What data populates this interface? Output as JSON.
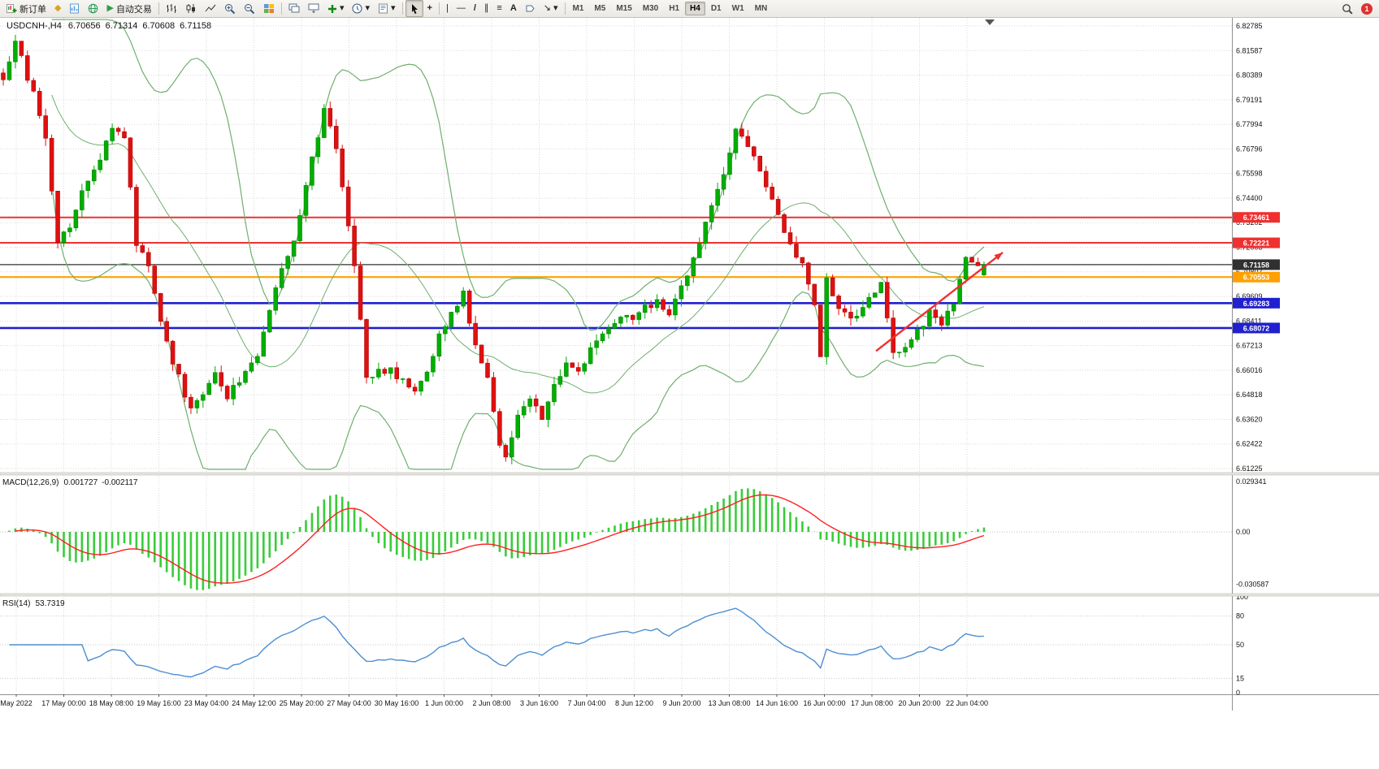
{
  "toolbar": {
    "new_order_label": "新订单",
    "autotrade_label": "自动交易",
    "timeframes": [
      "M1",
      "M5",
      "M15",
      "M30",
      "H1",
      "H4",
      "D1",
      "W1",
      "MN"
    ],
    "active_timeframe": "H4",
    "notification_count": "1",
    "icons": {
      "gold_diamond": "◆",
      "play": "▶",
      "crosshair": "+",
      "vline": "|",
      "hline": "—",
      "trendline": "/",
      "channel": "∥",
      "fibo": "≡",
      "text_tool": "A",
      "arrow_tool": "↘",
      "caret": "▾"
    }
  },
  "chart": {
    "symbol_period": "USDCNH-,H4",
    "ohlc": {
      "open": "6.70656",
      "high": "6.71314",
      "low": "6.70608",
      "close": "6.71158"
    },
    "price_axis_labels": [
      "6.82785",
      "6.81587",
      "6.80389",
      "6.79191",
      "6.77994",
      "6.76796",
      "6.75598",
      "6.74400",
      "6.73202",
      "6.72005",
      "6.70807",
      "6.69609",
      "6.68411",
      "6.67213",
      "6.66016",
      "6.64818",
      "6.63620",
      "6.62422",
      "6.61225"
    ],
    "time_axis_labels": [
      "May 2022",
      "17 May 00:00",
      "18 May 08:00",
      "19 May 16:00",
      "23 May 04:00",
      "24 May 12:00",
      "25 May 20:00",
      "27 May 04:00",
      "30 May 16:00",
      "1 Jun 00:00",
      "2 Jun 08:00",
      "3 Jun 16:00",
      "7 Jun 04:00",
      "8 Jun 12:00",
      "9 Jun 20:00",
      "13 Jun 08:00",
      "14 Jun 16:00",
      "16 Jun 00:00",
      "17 Jun 08:00",
      "20 Jun 20:00",
      "22 Jun 04:00"
    ]
  },
  "macd": {
    "label": "MACD(12,26,9)",
    "value_main": "0.001727",
    "value_signal": "-0.002117",
    "scale": [
      "0.029341",
      "0.00",
      "-0.030587"
    ]
  },
  "rsi": {
    "label": "RSI(14)",
    "value": "53.7319",
    "scale": [
      "100",
      "80",
      "50",
      "15",
      "0"
    ]
  },
  "palette": {
    "grid": "#d9d9d9",
    "candle_up": "#00AE00",
    "candle_up_border": "#007A00",
    "candle_down": "#E01010",
    "candle_dn_border": "#A00000",
    "bollinger": "#6FAF6F",
    "macd_hist": "#3ACC3A",
    "macd_signal": "#FF2020",
    "rsi": "#4D8FD1"
  },
  "chart_data": {
    "type": "candlestick",
    "symbol": "USDCNH",
    "period": "H4",
    "seed": 20220622,
    "candle_count": 163,
    "candle_spacing_px": 7.45,
    "price_axis": {
      "max": 6.82785,
      "min": 6.61225
    },
    "last_ohlc": {
      "open": 6.70656,
      "high": 6.71314,
      "low": 6.70608,
      "close": 6.71158
    },
    "levels": [
      {
        "label": "6.73461",
        "value": 6.73461,
        "color": "#F03030",
        "width": 2
      },
      {
        "label": "6.72221",
        "value": 6.72221,
        "color": "#F03030",
        "width": 2
      },
      {
        "label": "6.71158",
        "value": 6.71158,
        "color": "#303030",
        "width": 1.2
      },
      {
        "label": "6.70553",
        "value": 6.70553,
        "color": "#FFA000",
        "width": 2.2
      },
      {
        "label": "6.69283",
        "value": 6.69283,
        "color": "#2020D0",
        "width": 2.6
      },
      {
        "label": "6.68072",
        "value": 6.68072,
        "color": "#2020D0",
        "width": 2.6
      }
    ],
    "trend_arrow": {
      "from_price": 6.6695,
      "to_price": 6.7175,
      "color": "#F03030"
    },
    "close_waypoints": [
      [
        0,
        6.802
      ],
      [
        2,
        6.82
      ],
      [
        5,
        6.795
      ],
      [
        7,
        6.775
      ],
      [
        9,
        6.723
      ],
      [
        11,
        6.73
      ],
      [
        13,
        6.749
      ],
      [
        16,
        6.762
      ],
      [
        18,
        6.78
      ],
      [
        20,
        6.773
      ],
      [
        22,
        6.722
      ],
      [
        24,
        6.71
      ],
      [
        26,
        6.682
      ],
      [
        28,
        6.665
      ],
      [
        31,
        6.641
      ],
      [
        33,
        6.65
      ],
      [
        35,
        6.659
      ],
      [
        37,
        6.648
      ],
      [
        39,
        6.654
      ],
      [
        42,
        6.668
      ],
      [
        45,
        6.701
      ],
      [
        48,
        6.722
      ],
      [
        50,
        6.752
      ],
      [
        53,
        6.786
      ],
      [
        55,
        6.77
      ],
      [
        56,
        6.748
      ],
      [
        58,
        6.712
      ],
      [
        60,
        6.656
      ],
      [
        62,
        6.659
      ],
      [
        64,
        6.661
      ],
      [
        66,
        6.654
      ],
      [
        68,
        6.65
      ],
      [
        70,
        6.661
      ],
      [
        72,
        6.676
      ],
      [
        74,
        6.687
      ],
      [
        76,
        6.698
      ],
      [
        78,
        6.672
      ],
      [
        80,
        6.656
      ],
      [
        82,
        6.625
      ],
      [
        83,
        6.618
      ],
      [
        85,
        6.64
      ],
      [
        87,
        6.648
      ],
      [
        89,
        6.638
      ],
      [
        91,
        6.652
      ],
      [
        93,
        6.663
      ],
      [
        95,
        6.66
      ],
      [
        97,
        6.67
      ],
      [
        100,
        6.679
      ],
      [
        102,
        6.688
      ],
      [
        104,
        6.684
      ],
      [
        106,
        6.69
      ],
      [
        108,
        6.693
      ],
      [
        110,
        6.686
      ],
      [
        112,
        6.7
      ],
      [
        114,
        6.714
      ],
      [
        115,
        6.722
      ],
      [
        117,
        6.74
      ],
      [
        119,
        6.756
      ],
      [
        121,
        6.779
      ],
      [
        123,
        6.771
      ],
      [
        125,
        6.758
      ],
      [
        127,
        6.742
      ],
      [
        129,
        6.728
      ],
      [
        130,
        6.72
      ],
      [
        132,
        6.712
      ],
      [
        134,
        6.69
      ],
      [
        135,
        6.668
      ],
      [
        136,
        6.704
      ],
      [
        138,
        6.692
      ],
      [
        140,
        6.684
      ],
      [
        142,
        6.69
      ],
      [
        144,
        6.699
      ],
      [
        145,
        6.704
      ],
      [
        147,
        6.668
      ],
      [
        149,
        6.672
      ],
      [
        151,
        6.679
      ],
      [
        153,
        6.688
      ],
      [
        155,
        6.682
      ],
      [
        157,
        6.693
      ],
      [
        159,
        6.716
      ],
      [
        161,
        6.71
      ],
      [
        162,
        6.71158
      ]
    ],
    "indicators": {
      "bollinger": {
        "period": 20,
        "deviation": 2
      },
      "macd": {
        "fast": 12,
        "slow": 26,
        "signal": 9
      },
      "rsi": {
        "period": 14
      }
    }
  }
}
